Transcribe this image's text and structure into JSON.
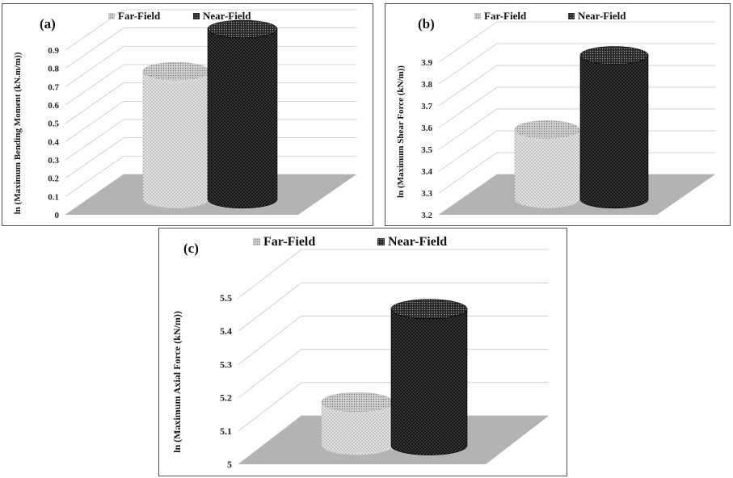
{
  "colors": {
    "far_field": "#e6e6e6",
    "near_field": "#141414",
    "floor": "#b3b3b3",
    "grid": "#d0d0d0"
  },
  "chart_data": [
    {
      "type": "bar",
      "panel": "(a)",
      "title": "",
      "legend_position": "top",
      "ylabel": "ln (Maximum Bending Moment (kN.m/m))",
      "ylim": [
        0,
        0.9
      ],
      "yticks": [
        "0",
        "0.1",
        "0.2",
        "0.3",
        "0.4",
        "0.5",
        "0.6",
        "0.7",
        "0.8",
        "0.9"
      ],
      "categories": [
        ""
      ],
      "series": [
        {
          "name": "Far-Field",
          "values": [
            0.7
          ]
        },
        {
          "name": "Near-Field",
          "values": [
            0.93
          ]
        }
      ]
    },
    {
      "type": "bar",
      "panel": "(b)",
      "title": "",
      "legend_position": "top",
      "ylabel": "ln (Maximum Shear Force (kN/m))",
      "ylim": [
        3.2,
        3.9
      ],
      "yticks": [
        "3.2",
        "3.3",
        "3.4",
        "3.5",
        "3.6",
        "3.7",
        "3.8",
        "3.9"
      ],
      "categories": [
        ""
      ],
      "series": [
        {
          "name": "Far-Field",
          "values": [
            3.52
          ]
        },
        {
          "name": "Near-Field",
          "values": [
            3.86
          ]
        }
      ]
    },
    {
      "type": "bar",
      "panel": "(c)",
      "title": "",
      "legend_position": "top",
      "ylabel": "ln (Maximum Axial Force (kN/m))",
      "ylim": [
        5,
        5.5
      ],
      "yticks": [
        "5",
        "5.1",
        "5.2",
        "5.3",
        "5.4",
        "5.5"
      ],
      "categories": [
        ""
      ],
      "series": [
        {
          "name": "Far-Field",
          "values": [
            5.13
          ]
        },
        {
          "name": "Near-Field",
          "values": [
            5.41
          ]
        }
      ]
    }
  ]
}
